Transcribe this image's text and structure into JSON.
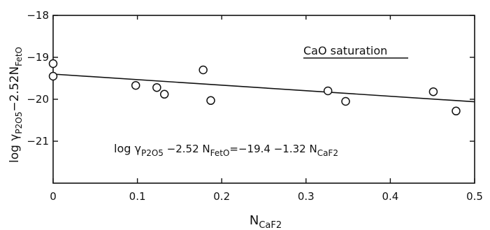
{
  "chart_data": {
    "type": "scatter",
    "xlabel": {
      "base": "N",
      "sub": "CaF2"
    },
    "ylabel": {
      "pre": "log γ",
      "sub1": "P2O5",
      "mid": "−2.52N",
      "sub2": "FetO"
    },
    "xlim": [
      0,
      0.5
    ],
    "ylim": [
      -22,
      -18
    ],
    "xticks": [
      0,
      0.1,
      0.2,
      0.3,
      0.4,
      0.5
    ],
    "xtick_labels": [
      "0",
      "0.1",
      "0.2",
      "0.3",
      "0.4",
      "0.5"
    ],
    "yticks": [
      -18,
      -19,
      -20,
      -21
    ],
    "ytick_labels": [
      "−18",
      "−19",
      "−20",
      "−21"
    ],
    "grid": false,
    "series": [
      {
        "marker": "open-circle",
        "points": [
          [
            0.0,
            -19.15
          ],
          [
            0.0,
            -19.45
          ],
          [
            0.098,
            -19.67
          ],
          [
            0.123,
            -19.72
          ],
          [
            0.132,
            -19.88
          ],
          [
            0.178,
            -19.3
          ],
          [
            0.187,
            -20.03
          ],
          [
            0.326,
            -19.8
          ],
          [
            0.347,
            -20.05
          ],
          [
            0.451,
            -19.82
          ],
          [
            0.478,
            -20.28
          ]
        ]
      }
    ],
    "regression": {
      "intercept": -19.4,
      "slope": -1.32,
      "x_range": [
        0,
        0.5
      ]
    },
    "annotations": {
      "saturation": "CaO saturation",
      "equation": {
        "p1": "log γ",
        "s1": "P2O5",
        "p2": " −2.52 N",
        "s2": "FetO",
        "p3": "=−19.4 −1.32 N",
        "s3": "CaF2"
      }
    }
  }
}
